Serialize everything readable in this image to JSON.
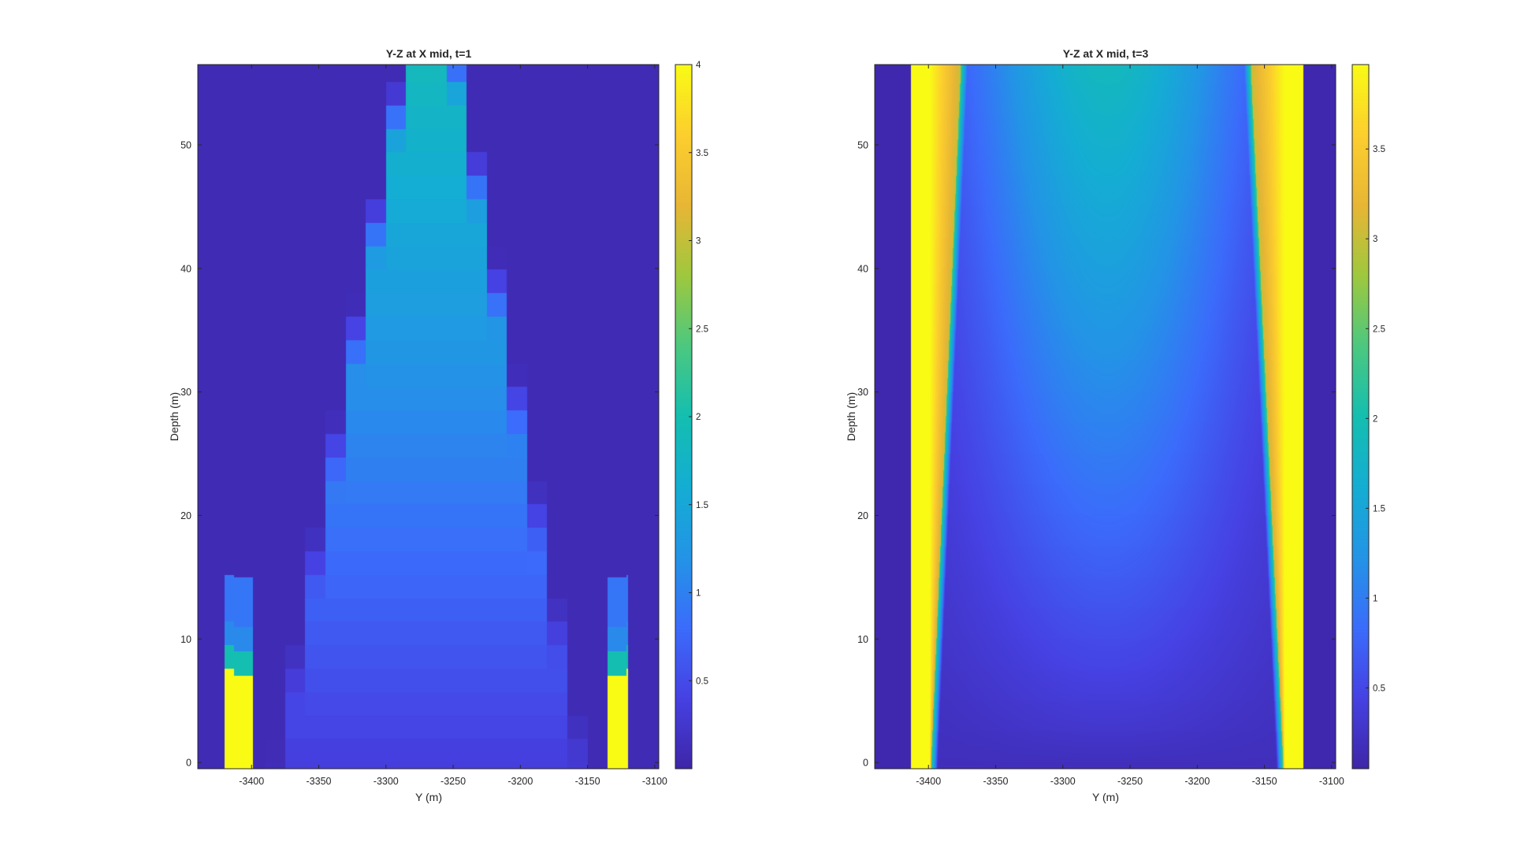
{
  "chart_data": [
    {
      "type": "heatmap",
      "title": "Y-Z at X mid, t=1",
      "xlabel": "Y (m)",
      "ylabel": "Depth (m)",
      "xlim": [
        -3440,
        -3097
      ],
      "ylim": [
        -0.5,
        56.5
      ],
      "xticks": [
        -3400,
        -3350,
        -3300,
        -3250,
        -3200,
        -3150,
        -3100
      ],
      "yticks": [
        0,
        10,
        20,
        30,
        40,
        50
      ],
      "colorbar": {
        "limits": [
          0.0,
          4.0
        ],
        "ticks": [
          0.5,
          1,
          1.5,
          2,
          2.5,
          3,
          3.5,
          4
        ],
        "colormap": "parula"
      },
      "field": {
        "grid_step_y_m": 15,
        "grid_step_z_m": 1.9,
        "source_y": [
          -3413,
          -3399,
          -3135,
          -3121
        ],
        "source_top_depth": 7,
        "source_value": 4.0,
        "plume_center_y": -3267,
        "plume_base_halfwidth_m": 112,
        "plume_top_halfwidth_m": 19,
        "plume_base_value": 0.35,
        "plume_top_value": 1.85,
        "background_value": 0.08,
        "edge_smoothing_m": 6,
        "side_wall_values": [
          [
            9,
            2.0
          ],
          [
            11,
            1.1
          ],
          [
            15,
            0.9
          ]
        ],
        "shading": "blocky"
      }
    },
    {
      "type": "heatmap",
      "title": "Y-Z at X mid, t=3",
      "xlabel": "Y (m)",
      "ylabel": "Depth (m)",
      "xlim": [
        -3440,
        -3097
      ],
      "ylim": [
        -0.5,
        56.5
      ],
      "xticks": [
        -3400,
        -3350,
        -3300,
        -3250,
        -3200,
        -3150,
        -3100
      ],
      "yticks": [
        0,
        10,
        20,
        30,
        40,
        50
      ],
      "colorbar": {
        "limits": [
          0.05,
          3.97
        ],
        "ticks": [
          0.5,
          1,
          1.5,
          2,
          2.5,
          3,
          3.5
        ],
        "colormap": "parula"
      },
      "field": {
        "source_y": [
          -3413,
          -3399,
          -3135,
          -3121
        ],
        "source_value": 3.97,
        "background_value": 0.08,
        "inner_edge_base_y": [
          -3398,
          -3136
        ],
        "inner_edge_top_y": [
          -3376,
          -3160
        ],
        "interior_base_value": 0.18,
        "interior_top_value": 1.85,
        "interior_center_y": -3267,
        "interior_halfwidth_m": 130
      }
    }
  ]
}
